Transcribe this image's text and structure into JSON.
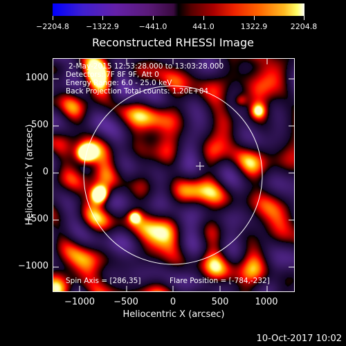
{
  "colorbar": {
    "tick_labels": [
      "−2204.8",
      "−1322.9",
      "−441.0",
      "441.0",
      "1322.9",
      "2204.8"
    ]
  },
  "plot": {
    "title": "Reconstructed RHESSI Image",
    "info_lines": [
      "2-May-2015 12:53:28.000 to 13:03:28.000",
      "Detectors: 7F 8F 9F, Att 0",
      "Energy Range: 6.0 - 25.0 keV",
      "Back Projection   Total counts: 1.20E+04"
    ],
    "spin_axis": "Spin Axis = [286,35]",
    "flare_position": "Flare Position = [-784,-232]",
    "x_axis_label": "Heliocentric X (arcsec)",
    "y_axis_label": "Heliocentric Y (arcsec)",
    "x_tick_labels": [
      "−1000",
      "−500",
      "0",
      "500",
      "1000"
    ],
    "y_tick_labels": [
      "1000",
      "500",
      "0",
      "−500",
      "−1000"
    ],
    "image_range": [
      -2204.8,
      2204.8
    ],
    "x_range_arcsec": [
      -1280,
      1280
    ],
    "y_range_arcsec": [
      -1250,
      1250
    ]
  },
  "timestamp": "10-Oct-2017 10:02"
}
